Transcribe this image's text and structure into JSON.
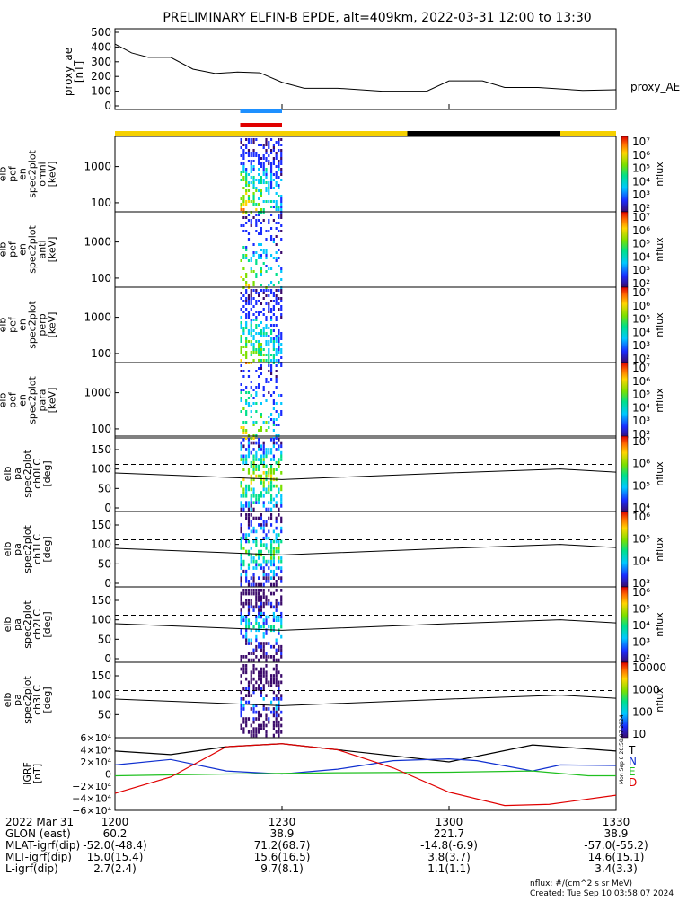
{
  "title": "PRELIMINARY ELFIN-B EPDE, alt=409km, 2022-03-31 12:00 to 13:30",
  "colors": {
    "ae_line": "#000000",
    "bar_blue": "#1e90ff",
    "bar_red": "#e00000",
    "orbit_sun": "#f5d000",
    "orbit_dark": "#000000",
    "grf_T": "#000000",
    "grf_N": "#1030d0",
    "grf_E": "#20c020",
    "grf_D": "#e00000"
  },
  "chart_data": [
    {
      "type": "line",
      "panel": "proxy_ae",
      "ylabel_lines": [
        "proxy_ae",
        "[nT]"
      ],
      "legend": "proxy_AE",
      "y_ticks": [
        "500",
        "400",
        "300",
        "200",
        "100",
        "0"
      ],
      "ylim": [
        0,
        500
      ],
      "x_minutes": [
        0,
        3,
        6,
        10,
        14,
        18,
        22,
        26,
        30,
        34,
        40,
        48,
        56,
        60,
        66,
        70,
        76,
        84,
        90
      ],
      "values": [
        420,
        360,
        330,
        330,
        250,
        220,
        230,
        225,
        160,
        120,
        120,
        100,
        100,
        170,
        170,
        125,
        125,
        105,
        110
      ]
    },
    {
      "type": "heatmap",
      "panel": "spectrogram",
      "channels": [
        {
          "label_lines": [
            "elb",
            "pef",
            "en",
            "spec2plot",
            "omni",
            "[keV]"
          ],
          "y_ticks": [
            "1000",
            "100"
          ]
        },
        {
          "label_lines": [
            "elb",
            "pef",
            "en",
            "spec2plot",
            "anti",
            "[keV]"
          ],
          "y_ticks": [
            "1000",
            "100"
          ]
        },
        {
          "label_lines": [
            "elb",
            "pef",
            "en",
            "spec2plot",
            "perp",
            "[keV]"
          ],
          "y_ticks": [
            "1000",
            "100"
          ]
        },
        {
          "label_lines": [
            "elb",
            "pef",
            "en",
            "spec2plot",
            "para",
            "[keV]"
          ],
          "y_ticks": [
            "1000",
            "100"
          ]
        }
      ],
      "colorbar_label": "nflux",
      "colorbar_ticks": [
        "10⁷",
        "10⁶",
        "10⁵",
        "10⁴",
        "10³",
        "10²"
      ]
    },
    {
      "type": "heatmap",
      "panel": "pitch_angle",
      "channels": [
        {
          "label_lines": [
            "elb",
            "pa",
            "spec2plot",
            "ch0LC",
            "[deg]"
          ],
          "y_ticks": [
            "150",
            "100",
            "50",
            "0"
          ],
          "colorbar_ticks": [
            "10⁷",
            "10⁶",
            "10⁵",
            "10⁴"
          ]
        },
        {
          "label_lines": [
            "elb",
            "pa",
            "spec2plot",
            "ch1LC",
            "[deg]"
          ],
          "y_ticks": [
            "150",
            "100",
            "50",
            "0"
          ],
          "colorbar_ticks": [
            "10⁶",
            "10⁵",
            "10⁴",
            "10³"
          ]
        },
        {
          "label_lines": [
            "elb",
            "pa",
            "spec2plot",
            "ch2LC",
            "[deg]"
          ],
          "y_ticks": [
            "150",
            "100",
            "50",
            "0"
          ],
          "colorbar_ticks": [
            "10⁶",
            "10⁵",
            "10⁴",
            "10³",
            "10²"
          ]
        },
        {
          "label_lines": [
            "elb",
            "pa",
            "spec2plot",
            "ch3LC",
            "[deg]"
          ],
          "y_ticks": [
            "150",
            "100",
            "50"
          ],
          "colorbar_ticks": [
            "10000",
            "1000",
            "100",
            "10"
          ]
        }
      ],
      "colorbar_label": "nflux"
    },
    {
      "type": "line",
      "panel": "igrf",
      "ylabel_lines": [
        "IGRF",
        "[nT]"
      ],
      "y_ticks": [
        "6×10⁴",
        "4×10⁴",
        "2×10⁴",
        "0",
        "−2×10⁴",
        "−4×10⁴",
        "−6×10⁴"
      ],
      "ylim": [
        -60000,
        60000
      ],
      "series": [
        {
          "name": "T",
          "x": [
            0,
            10,
            20,
            30,
            40,
            60,
            75,
            90
          ],
          "values": [
            38000,
            32000,
            45000,
            50000,
            40000,
            20000,
            48000,
            38000
          ]
        },
        {
          "name": "N",
          "x": [
            0,
            10,
            20,
            30,
            40,
            50,
            60,
            65,
            75,
            80,
            90
          ],
          "values": [
            15000,
            24000,
            5000,
            0,
            8000,
            22000,
            25000,
            22000,
            5000,
            15000,
            14000
          ]
        },
        {
          "name": "E",
          "x": [
            0,
            20,
            40,
            60,
            75,
            85,
            90
          ],
          "values": [
            -3000,
            0,
            2000,
            3000,
            5000,
            -3000,
            -3000
          ]
        },
        {
          "name": "D",
          "x": [
            0,
            10,
            20,
            30,
            40,
            50,
            60,
            70,
            78,
            90
          ],
          "values": [
            -32000,
            -5000,
            45000,
            50000,
            40000,
            10000,
            -30000,
            -52000,
            -50000,
            -35000
          ]
        }
      ]
    }
  ],
  "time_axis": {
    "row_label": "2022 Mar 31",
    "ticks": [
      "1200",
      "1230",
      "1300",
      "1330"
    ]
  },
  "ephemeris": [
    {
      "label": "GLON (east)",
      "values": [
        "60.2",
        "38.9",
        "221.7",
        "38.9"
      ]
    },
    {
      "label": "MLAT-igrf(dip)",
      "values": [
        "-52.0(-48.4)",
        "71.2(68.7)",
        "-14.8(-6.9)",
        "-57.0(-55.2)"
      ]
    },
    {
      "label": "MLT-igrf(dip)",
      "values": [
        "15.0(15.4)",
        "15.6(16.5)",
        "3.8(3.7)",
        "14.6(15.1)"
      ]
    },
    {
      "label": "L-igrf(dip)",
      "values": [
        "2.7(2.4)",
        "9.7(8.1)",
        "1.1(1.1)",
        "3.4(3.3)"
      ]
    }
  ],
  "footer": {
    "nflux_units": "nflux: #/(cm^2 s sr MeV)",
    "created": "Created: Tue Sep 10 03:58:07 2024"
  },
  "side_stamp": "Mon Sep  8 20:58:07 2024"
}
